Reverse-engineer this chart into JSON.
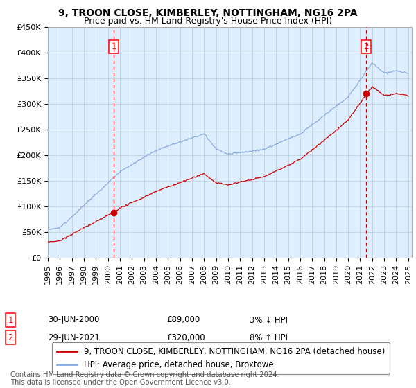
{
  "title": "9, TROON CLOSE, KIMBERLEY, NOTTINGHAM, NG16 2PA",
  "subtitle": "Price paid vs. HM Land Registry's House Price Index (HPI)",
  "ylim": [
    0,
    450000
  ],
  "yticks": [
    0,
    50000,
    100000,
    150000,
    200000,
    250000,
    300000,
    350000,
    400000,
    450000
  ],
  "ytick_labels": [
    "£0",
    "£50K",
    "£100K",
    "£150K",
    "£200K",
    "£250K",
    "£300K",
    "£350K",
    "£400K",
    "£450K"
  ],
  "xtick_years": [
    1995,
    1996,
    1997,
    1998,
    1999,
    2000,
    2001,
    2002,
    2003,
    2004,
    2005,
    2006,
    2007,
    2008,
    2009,
    2010,
    2011,
    2012,
    2013,
    2014,
    2015,
    2016,
    2017,
    2018,
    2019,
    2020,
    2021,
    2022,
    2023,
    2024,
    2025
  ],
  "sale1_year": 2000.5,
  "sale1_price": 89000,
  "sale1_label": "1",
  "sale1_date": "30-JUN-2000",
  "sale1_amount": "£89,000",
  "sale1_pct": "3% ↓ HPI",
  "sale2_year": 2021.5,
  "sale2_price": 320000,
  "sale2_label": "2",
  "sale2_date": "29-JUN-2021",
  "sale2_amount": "£320,000",
  "sale2_pct": "8% ↑ HPI",
  "line_color_property": "#cc0000",
  "line_color_hpi": "#88aadd",
  "vline_color": "#cc0000",
  "marker_color_property": "#cc0000",
  "legend_label_property": "9, TROON CLOSE, KIMBERLEY, NOTTINGHAM, NG16 2PA (detached house)",
  "legend_label_hpi": "HPI: Average price, detached house, Broxtowe",
  "footer": "Contains HM Land Registry data © Crown copyright and database right 2024.\nThis data is licensed under the Open Government Licence v3.0.",
  "background_color": "#ffffff",
  "plot_bg_color": "#ddeeff",
  "grid_color": "#bbccdd",
  "title_fontsize": 10,
  "subtitle_fontsize": 9,
  "tick_fontsize": 8,
  "legend_fontsize": 8.5
}
